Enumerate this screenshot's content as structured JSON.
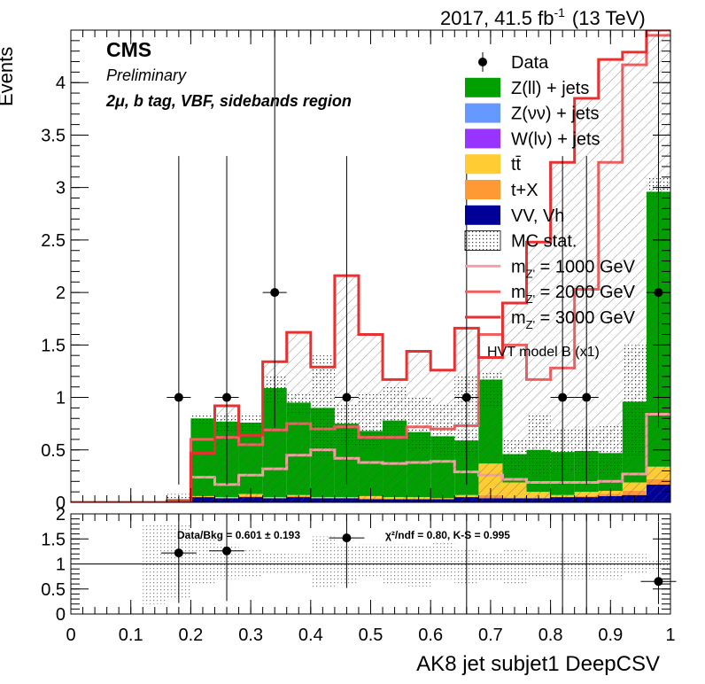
{
  "header": {
    "lumi": "2017, 41.5 fb",
    "lumi_sup": "-1",
    "energy": "(13 TeV)",
    "experiment": "CMS",
    "status": "Preliminary",
    "region": "2μ, b tag, VBF, sidebands region"
  },
  "legend": {
    "items": [
      {
        "label": "Data",
        "kind": "marker"
      },
      {
        "label": "Z(ll) + jets",
        "kind": "fill",
        "color": "#00a000"
      },
      {
        "label": "Z(νν) + jets",
        "kind": "fill",
        "color": "#6699ff"
      },
      {
        "label": "W(lν) + jets",
        "kind": "fill",
        "color": "#9933ff"
      },
      {
        "label": "tt̄",
        "kind": "fill",
        "color": "#ffcc33"
      },
      {
        "label": "t+X",
        "kind": "fill",
        "color": "#ff9933"
      },
      {
        "label": "VV, Vh",
        "kind": "fill",
        "color": "#000099"
      },
      {
        "label": "MC stat.",
        "kind": "dots"
      },
      {
        "label": "m",
        "sub": "Z'",
        "suffix": " = 1000 GeV",
        "kind": "line",
        "color": "#f4a0a0"
      },
      {
        "label": "m",
        "sub": "Z'",
        "suffix": " = 2000 GeV",
        "kind": "line",
        "color": "#f06060"
      },
      {
        "label": "m",
        "sub": "Z'",
        "suffix": " = 3000 GeV",
        "kind": "line",
        "color": "#e83030"
      }
    ],
    "model": "HVT model B (x1)"
  },
  "ratio": {
    "stats_left": "Data/Bkg = 0.601 ± 0.193",
    "stats_right": "χ²/ndf = 0.80,   K-S = 0.995"
  },
  "chart_data": {
    "type": "bar",
    "stacked": true,
    "xlabel": "AK8 jet subjet1 DeepCSV",
    "ylabel": "Events",
    "xlim": [
      0,
      1
    ],
    "ylim": [
      0,
      4.5
    ],
    "yticks": [
      0,
      0.5,
      1,
      1.5,
      2,
      2.5,
      3,
      3.5,
      4
    ],
    "xticks": [
      0,
      0.1,
      0.2,
      0.3,
      0.4,
      0.5,
      0.6,
      0.7,
      0.8,
      0.9,
      1
    ],
    "bin_width": 0.04,
    "bin_edges_start": 0,
    "backgrounds": [
      {
        "name": "VV, Vh",
        "color": "#000099",
        "values": [
          0,
          0,
          0,
          0,
          0.02,
          0.05,
          0.04,
          0.05,
          0.04,
          0.05,
          0.04,
          0.04,
          0.03,
          0.03,
          0.03,
          0.03,
          0.05,
          0.04,
          0.04,
          0.04,
          0.05,
          0.05,
          0.06,
          0.07,
          0.17
        ]
      },
      {
        "name": "t+X",
        "color": "#ff9933",
        "values": [
          0,
          0,
          0,
          0,
          0,
          0,
          0,
          0.01,
          0,
          0.01,
          0,
          0,
          0.01,
          0,
          0,
          0,
          0,
          0.03,
          0,
          0,
          0,
          0.01,
          0.02,
          0.04,
          0.05
        ]
      },
      {
        "name": "tt̄",
        "color": "#ffcc33",
        "values": [
          0,
          0,
          0,
          0,
          0,
          0.01,
          0.01,
          0.02,
          0.01,
          0.01,
          0.01,
          0.01,
          0.02,
          0.02,
          0.02,
          0.01,
          0.02,
          0.3,
          0.15,
          0.06,
          0.02,
          0.04,
          0.03,
          0.08,
          0.12
        ]
      },
      {
        "name": "W(lν) + jets",
        "color": "#9933ff",
        "values": [
          0,
          0,
          0,
          0,
          0,
          0,
          0,
          0,
          0,
          0,
          0,
          0,
          0,
          0,
          0,
          0,
          0,
          0,
          0,
          0,
          0,
          0,
          0,
          0,
          0
        ]
      },
      {
        "name": "Z(νν) + jets",
        "color": "#6699ff",
        "values": [
          0,
          0,
          0,
          0,
          0,
          0,
          0,
          0,
          0,
          0,
          0,
          0,
          0,
          0,
          0,
          0,
          0,
          0,
          0,
          0,
          0,
          0,
          0,
          0,
          0
        ]
      },
      {
        "name": "Z(ll) + jets",
        "color": "#00a000",
        "values": [
          0,
          0,
          0,
          0,
          0.01,
          0.74,
          0.72,
          0.68,
          1.04,
          0.88,
          0.85,
          0.7,
          0.62,
          0.73,
          0.62,
          0.59,
          0.52,
          0.8,
          0.27,
          0.4,
          0.41,
          0.39,
          0.36,
          0.77,
          2.62
        ]
      }
    ],
    "mc_stat": {
      "up": [
        0,
        0,
        0,
        0,
        0.08,
        0.85,
        0.85,
        0.85,
        1.2,
        1.05,
        1.4,
        0.95,
        1.05,
        1.1,
        1.0,
        0.95,
        1.2,
        1.25,
        0.6,
        0.85,
        0.7,
        0.72,
        0.75,
        1.5,
        3.1
      ],
      "down": [
        0,
        0,
        0,
        0,
        0,
        0.75,
        0.68,
        0.68,
        0.94,
        0.85,
        0.42,
        0.55,
        0.52,
        0.6,
        0.5,
        0.45,
        0.45,
        0.9,
        0.3,
        0.25,
        0.3,
        0.28,
        0.25,
        0.45,
        2.9
      ]
    },
    "signals": [
      {
        "name": "m_Z' = 1000 GeV",
        "color": "#f4a0a0",
        "values": [
          0,
          0,
          0,
          0,
          0.01,
          0.24,
          0.17,
          0.26,
          0.32,
          0.45,
          0.5,
          0.42,
          0.38,
          0.37,
          0.38,
          0.39,
          0.29,
          0.26,
          0.22,
          0.19,
          0.19,
          0.19,
          0.2,
          0.27,
          0.84
        ]
      },
      {
        "name": "m_Z' = 2000 GeV",
        "color": "#f06060",
        "values": [
          0,
          0,
          0,
          0,
          0.01,
          0.6,
          0.62,
          0.55,
          0.69,
          0.75,
          0.7,
          0.72,
          0.62,
          0.62,
          0.72,
          0.7,
          0.73,
          1.6,
          1.5,
          1.17,
          1.28,
          2.03,
          3.24,
          4.17,
          4.45
        ]
      },
      {
        "name": "m_Z' = 3000 GeV",
        "color": "#e83030",
        "values": [
          0,
          0,
          0,
          0,
          0.01,
          0.47,
          0.92,
          0.64,
          1.34,
          1.62,
          1.29,
          2.16,
          1.6,
          1.17,
          1.44,
          1.26,
          1.66,
          1.38,
          1.9,
          2.48,
          3.24,
          3.85,
          4.22,
          4.29,
          4.5
        ]
      }
    ],
    "data": {
      "name": "Data",
      "x": [
        0.18,
        0.26,
        0.34,
        0.46,
        0.66,
        0.82,
        0.86,
        0.98
      ],
      "y": [
        1,
        1,
        2,
        1,
        1,
        1,
        1,
        2
      ],
      "err_lo": [
        0.83,
        0.83,
        1.29,
        0.83,
        0.83,
        0.83,
        0.83,
        1.29
      ],
      "err_hi": [
        2.3,
        2.3,
        2.63,
        2.3,
        2.3,
        2.3,
        2.3,
        2.63
      ]
    },
    "ratio_panel": {
      "ylim": [
        0,
        2
      ],
      "yticks": [
        0,
        0.5,
        1,
        1.5,
        2
      ],
      "ytick_labels": [
        "0",
        "0.5",
        "1",
        "1.5",
        "2"
      ],
      "points_x": [
        0.18,
        0.26,
        0.46,
        0.98
      ],
      "points_y": [
        1.22,
        1.26,
        1.52,
        0.65
      ],
      "err_lo": [
        1.0,
        1.0,
        1.0,
        0.45
      ],
      "err_hi": [
        2.0,
        2.0,
        2.0,
        1.2
      ],
      "vlines_x": [
        0.66,
        0.82,
        0.86
      ],
      "band_up": [
        0,
        0,
        0,
        1.8,
        1.8,
        1.5,
        1.4,
        1.3,
        1.25,
        1.2,
        1.55,
        1.35,
        1.4,
        1.4,
        1.35,
        1.45,
        1.3,
        1.25,
        1.3,
        1.2,
        1.2,
        1.25,
        1.25,
        1.2,
        1.1
      ],
      "band_down": [
        0,
        0,
        0,
        0.2,
        0.3,
        0.6,
        0.7,
        0.75,
        0.8,
        0.8,
        0.5,
        0.6,
        0.75,
        0.6,
        0.55,
        0.7,
        0.6,
        0.65,
        0.6,
        0.75,
        0.7,
        0.7,
        0.7,
        0.8,
        0.9
      ]
    }
  }
}
